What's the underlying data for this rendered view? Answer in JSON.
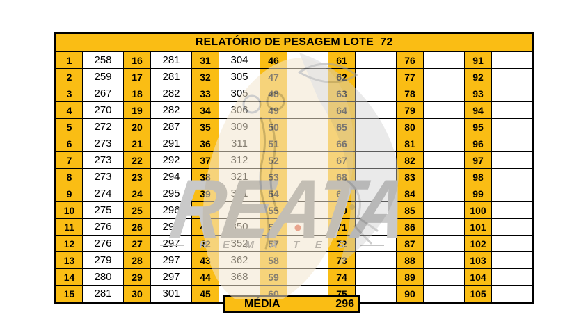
{
  "title": "RELATÓRIO DE PESAGEM LOTE  72",
  "summary": {
    "label": "MÉDIA",
    "value": "296"
  },
  "colors": {
    "cell_amber": "#FABD14",
    "grid": "#000000"
  },
  "watermark": {
    "brand": "REATA",
    "letters": [
      "R",
      "E",
      "M",
      "A",
      "T",
      "E",
      "S"
    ]
  },
  "table": {
    "columns": [
      {
        "cells": [
          [
            "1",
            "258"
          ],
          [
            "2",
            "259"
          ],
          [
            "3",
            "267"
          ],
          [
            "4",
            "270"
          ],
          [
            "5",
            "272"
          ],
          [
            "6",
            "273"
          ],
          [
            "7",
            "273"
          ],
          [
            "8",
            "273"
          ],
          [
            "9",
            "274"
          ],
          [
            "10",
            "275"
          ],
          [
            "11",
            "276"
          ],
          [
            "12",
            "276"
          ],
          [
            "13",
            "279"
          ],
          [
            "14",
            "280"
          ],
          [
            "15",
            "281"
          ]
        ]
      },
      {
        "cells": [
          [
            "16",
            "281"
          ],
          [
            "17",
            "281"
          ],
          [
            "18",
            "282"
          ],
          [
            "19",
            "282"
          ],
          [
            "20",
            "287"
          ],
          [
            "21",
            "291"
          ],
          [
            "22",
            "292"
          ],
          [
            "23",
            "294"
          ],
          [
            "24",
            "295"
          ],
          [
            "25",
            "296"
          ],
          [
            "26",
            "296"
          ],
          [
            "27",
            "297"
          ],
          [
            "28",
            "297"
          ],
          [
            "29",
            "297"
          ],
          [
            "30",
            "301"
          ]
        ]
      },
      {
        "cells": [
          [
            "31",
            "304"
          ],
          [
            "32",
            "305"
          ],
          [
            "33",
            "305"
          ],
          [
            "34",
            "306"
          ],
          [
            "35",
            "309"
          ],
          [
            "36",
            "311"
          ],
          [
            "37",
            "312"
          ],
          [
            "38",
            "321"
          ],
          [
            "39",
            "321"
          ],
          [
            "40",
            "325"
          ],
          [
            "41",
            "350"
          ],
          [
            "42",
            "352"
          ],
          [
            "43",
            "362"
          ],
          [
            "44",
            "368"
          ],
          [
            "45",
            ""
          ]
        ]
      },
      {
        "cells": [
          [
            "46",
            ""
          ],
          [
            "47",
            ""
          ],
          [
            "48",
            ""
          ],
          [
            "49",
            ""
          ],
          [
            "50",
            ""
          ],
          [
            "51",
            ""
          ],
          [
            "52",
            ""
          ],
          [
            "53",
            ""
          ],
          [
            "54",
            ""
          ],
          [
            "55",
            ""
          ],
          [
            "56",
            ""
          ],
          [
            "57",
            ""
          ],
          [
            "58",
            ""
          ],
          [
            "59",
            ""
          ],
          [
            "60",
            ""
          ]
        ]
      },
      {
        "cells": [
          [
            "61",
            ""
          ],
          [
            "62",
            ""
          ],
          [
            "63",
            ""
          ],
          [
            "64",
            ""
          ],
          [
            "65",
            ""
          ],
          [
            "66",
            ""
          ],
          [
            "67",
            ""
          ],
          [
            "68",
            ""
          ],
          [
            "69",
            ""
          ],
          [
            "70",
            ""
          ],
          [
            "71",
            ""
          ],
          [
            "72",
            ""
          ],
          [
            "73",
            ""
          ],
          [
            "74",
            ""
          ],
          [
            "75",
            ""
          ]
        ]
      },
      {
        "cells": [
          [
            "76",
            ""
          ],
          [
            "77",
            ""
          ],
          [
            "78",
            ""
          ],
          [
            "79",
            ""
          ],
          [
            "80",
            ""
          ],
          [
            "81",
            ""
          ],
          [
            "82",
            ""
          ],
          [
            "83",
            ""
          ],
          [
            "84",
            ""
          ],
          [
            "85",
            ""
          ],
          [
            "86",
            ""
          ],
          [
            "87",
            ""
          ],
          [
            "88",
            ""
          ],
          [
            "89",
            ""
          ],
          [
            "90",
            ""
          ]
        ]
      },
      {
        "cells": [
          [
            "91",
            ""
          ],
          [
            "92",
            ""
          ],
          [
            "93",
            ""
          ],
          [
            "94",
            ""
          ],
          [
            "95",
            ""
          ],
          [
            "96",
            ""
          ],
          [
            "97",
            ""
          ],
          [
            "98",
            ""
          ],
          [
            "99",
            ""
          ],
          [
            "100",
            ""
          ],
          [
            "101",
            ""
          ],
          [
            "102",
            ""
          ],
          [
            "103",
            ""
          ],
          [
            "104",
            ""
          ],
          [
            "105",
            ""
          ]
        ]
      }
    ]
  }
}
